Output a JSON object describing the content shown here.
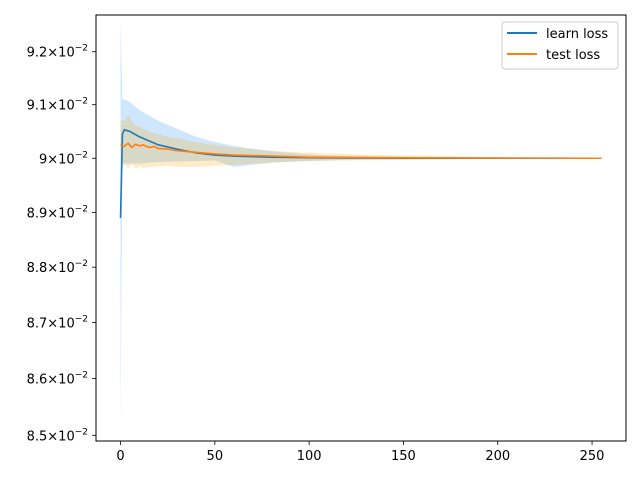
{
  "chart_data": {
    "type": "line",
    "title": "",
    "xlabel": "",
    "ylabel": "",
    "xlim": [
      -13,
      268
    ],
    "ylim": [
      0.0849,
      0.0927
    ],
    "yscale": "log",
    "grid": false,
    "legend_position": "top-right",
    "x_ticks": [
      {
        "value": 0,
        "label": "0"
      },
      {
        "value": 50,
        "label": "50"
      },
      {
        "value": 100,
        "label": "100"
      },
      {
        "value": 150,
        "label": "150"
      },
      {
        "value": 200,
        "label": "200"
      },
      {
        "value": 250,
        "label": "250"
      }
    ],
    "y_ticks": [
      {
        "value": 0.085,
        "mantissa": "8.5",
        "base": "10",
        "exponent": "−2"
      },
      {
        "value": 0.086,
        "mantissa": "8.6",
        "base": "10",
        "exponent": "−2"
      },
      {
        "value": 0.087,
        "mantissa": "8.7",
        "base": "10",
        "exponent": "−2"
      },
      {
        "value": 0.088,
        "mantissa": "8.8",
        "base": "10",
        "exponent": "−2"
      },
      {
        "value": 0.089,
        "mantissa": "8.9",
        "base": "10",
        "exponent": "−2"
      },
      {
        "value": 0.09,
        "mantissa": "9",
        "base": "10",
        "exponent": "−2"
      },
      {
        "value": 0.091,
        "mantissa": "9.1",
        "base": "10",
        "exponent": "−2"
      },
      {
        "value": 0.092,
        "mantissa": "9.2",
        "base": "10",
        "exponent": "−2"
      }
    ],
    "series": [
      {
        "name": "learn loss",
        "color": "#1f77b4",
        "band_color": "#1e90ff",
        "x": [
          0,
          1,
          2,
          5,
          10,
          20,
          30,
          40,
          50,
          60,
          70,
          80,
          100,
          120,
          150,
          200,
          255
        ],
        "y": [
          0.0889,
          0.09045,
          0.09053,
          0.0905,
          0.0904,
          0.09025,
          0.09017,
          0.0901,
          0.09006,
          0.09004,
          0.09003,
          0.09002,
          0.09001,
          0.090005,
          0.090002,
          0.090001,
          0.09
        ],
        "upper": [
          0.0926,
          0.0911,
          0.0911,
          0.09105,
          0.0909,
          0.0907,
          0.09055,
          0.0904,
          0.0903,
          0.09023,
          0.09018,
          0.09013,
          0.09007,
          0.09004,
          0.09002,
          0.090008,
          0.090003
        ],
        "lower": [
          0.0852,
          0.0898,
          0.0899,
          0.0899,
          0.0899,
          0.08993,
          0.08994,
          0.08995,
          0.08996,
          0.08984,
          0.08988,
          0.08992,
          0.08995,
          0.08997,
          0.08998,
          0.08999,
          0.089998
        ]
      },
      {
        "name": "test loss",
        "color": "#ff7f0e",
        "band_color": "#ffa500",
        "x": [
          0,
          2,
          4,
          6,
          8,
          10,
          12,
          15,
          18,
          20,
          25,
          30,
          40,
          50,
          60,
          80,
          100,
          150,
          200,
          255
        ],
        "y": [
          0.09025,
          0.09022,
          0.09028,
          0.0902,
          0.09026,
          0.09023,
          0.09025,
          0.0902,
          0.09022,
          0.09018,
          0.09017,
          0.09014,
          0.09011,
          0.09008,
          0.09006,
          0.09004,
          0.09002,
          0.090008,
          0.090003,
          0.09
        ],
        "upper": [
          0.0907,
          0.0907,
          0.0908,
          0.0907,
          0.0906,
          0.0906,
          0.09055,
          0.0905,
          0.09047,
          0.09045,
          0.0904,
          0.09037,
          0.0903,
          0.09025,
          0.0902,
          0.09014,
          0.0901,
          0.09005,
          0.09002,
          0.090004
        ],
        "lower": [
          0.0899,
          0.0899,
          0.0898,
          0.0899,
          0.0898,
          0.08985,
          0.08982,
          0.08984,
          0.08984,
          0.08985,
          0.08986,
          0.08984,
          0.08984,
          0.08986,
          0.08988,
          0.08992,
          0.08995,
          0.08997,
          0.08999,
          0.089998
        ]
      }
    ]
  }
}
